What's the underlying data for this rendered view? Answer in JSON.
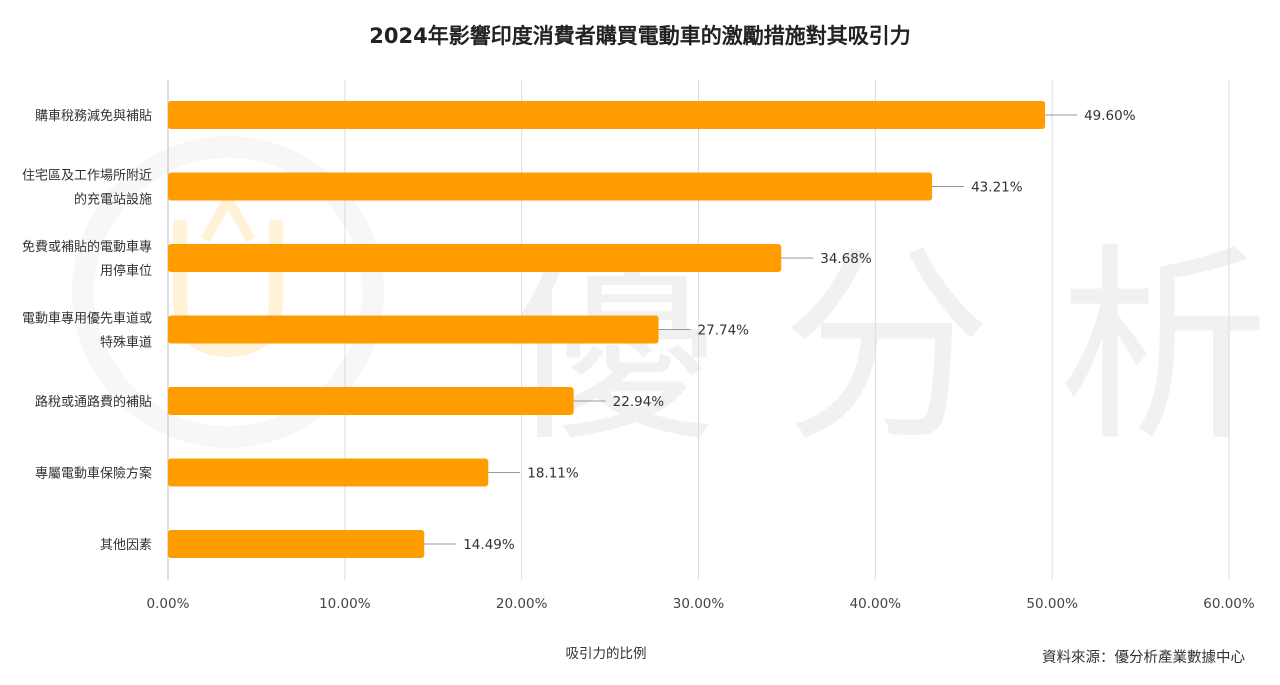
{
  "chart_data": {
    "type": "bar",
    "orientation": "horizontal",
    "title": "2024年影響印度消費者購買電動車的激勵措施對其吸引力",
    "xlabel": "吸引力的比例",
    "ylabel": "",
    "xlim": [
      0,
      60
    ],
    "ticks": [
      0,
      10,
      20,
      30,
      40,
      50,
      60
    ],
    "tick_labels": [
      "0.00%",
      "10.00%",
      "20.00%",
      "30.00%",
      "40.00%",
      "50.00%",
      "60.00%"
    ],
    "grid": true,
    "bar_color": "#ff9c00",
    "categories": [
      [
        "購車稅務減免與補貼"
      ],
      [
        "住宅區及工作場所附近",
        "的充電站設施"
      ],
      [
        "免費或補貼的電動車專",
        "用停車位"
      ],
      [
        "電動車專用優先車道或",
        "特殊車道"
      ],
      [
        "路稅或通路費的補貼"
      ],
      [
        "專屬電動車保險方案"
      ],
      [
        "其他因素"
      ]
    ],
    "values": [
      49.6,
      43.21,
      34.68,
      27.74,
      22.94,
      18.11,
      14.49
    ],
    "value_labels": [
      "49.60%",
      "43.21%",
      "34.68%",
      "27.74%",
      "22.94%",
      "18.11%",
      "14.49%"
    ]
  },
  "source": "資料來源：優分析產業數據中心",
  "watermark": {
    "text": "優 分 析",
    "logo": "u-logo-icon",
    "accent_color": "#ffe9b8"
  }
}
